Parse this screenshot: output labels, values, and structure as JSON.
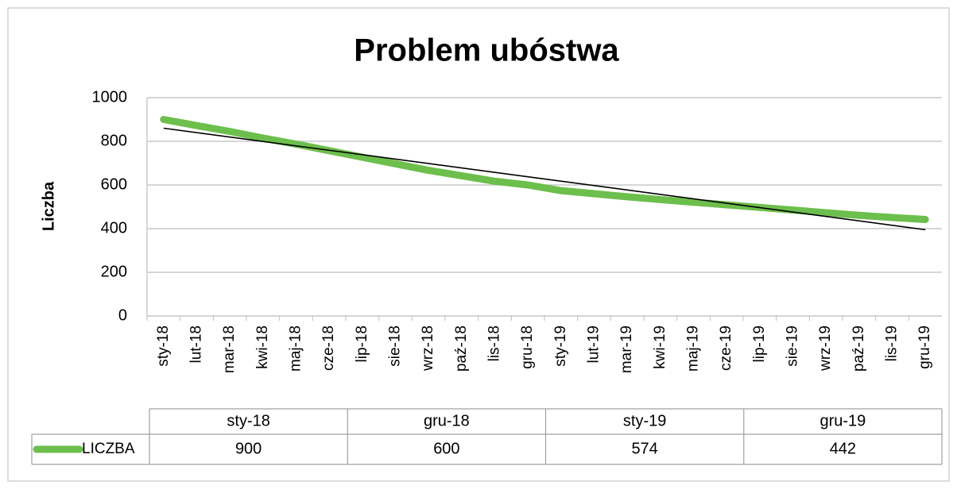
{
  "chart_data": {
    "type": "line",
    "title": "Problem ubóstwa",
    "y_label": "Liczba",
    "categories": [
      "sty-18",
      "lut-18",
      "mar-18",
      "kwi-18",
      "maj-18",
      "cze-18",
      "lip-18",
      "sie-18",
      "wrz-18",
      "paź-18",
      "lis-18",
      "gru-18",
      "sty-19",
      "lut-19",
      "mar-19",
      "kwi-19",
      "maj-19",
      "cze-19",
      "lip-19",
      "sie-19",
      "wrz-19",
      "paź-19",
      "lis-19",
      "gru-19"
    ],
    "series": [
      {
        "name": "LICZBA",
        "color": "#6cbf4c",
        "values": [
          900,
          872,
          845,
          815,
          787,
          757,
          727,
          697,
          667,
          642,
          617,
          600,
          574,
          560,
          546,
          533,
          521,
          509,
          497,
          485,
          473,
          461,
          451,
          442
        ]
      }
    ],
    "trendline": {
      "color": "#000000",
      "values": [
        860,
        395
      ]
    },
    "ylim": [
      0,
      1000
    ],
    "yticks": [
      0,
      200,
      400,
      600,
      800,
      1000
    ],
    "grid": true,
    "table_categories": [
      "sty-18",
      "gru-18",
      "sty-19",
      "gru-19"
    ]
  }
}
